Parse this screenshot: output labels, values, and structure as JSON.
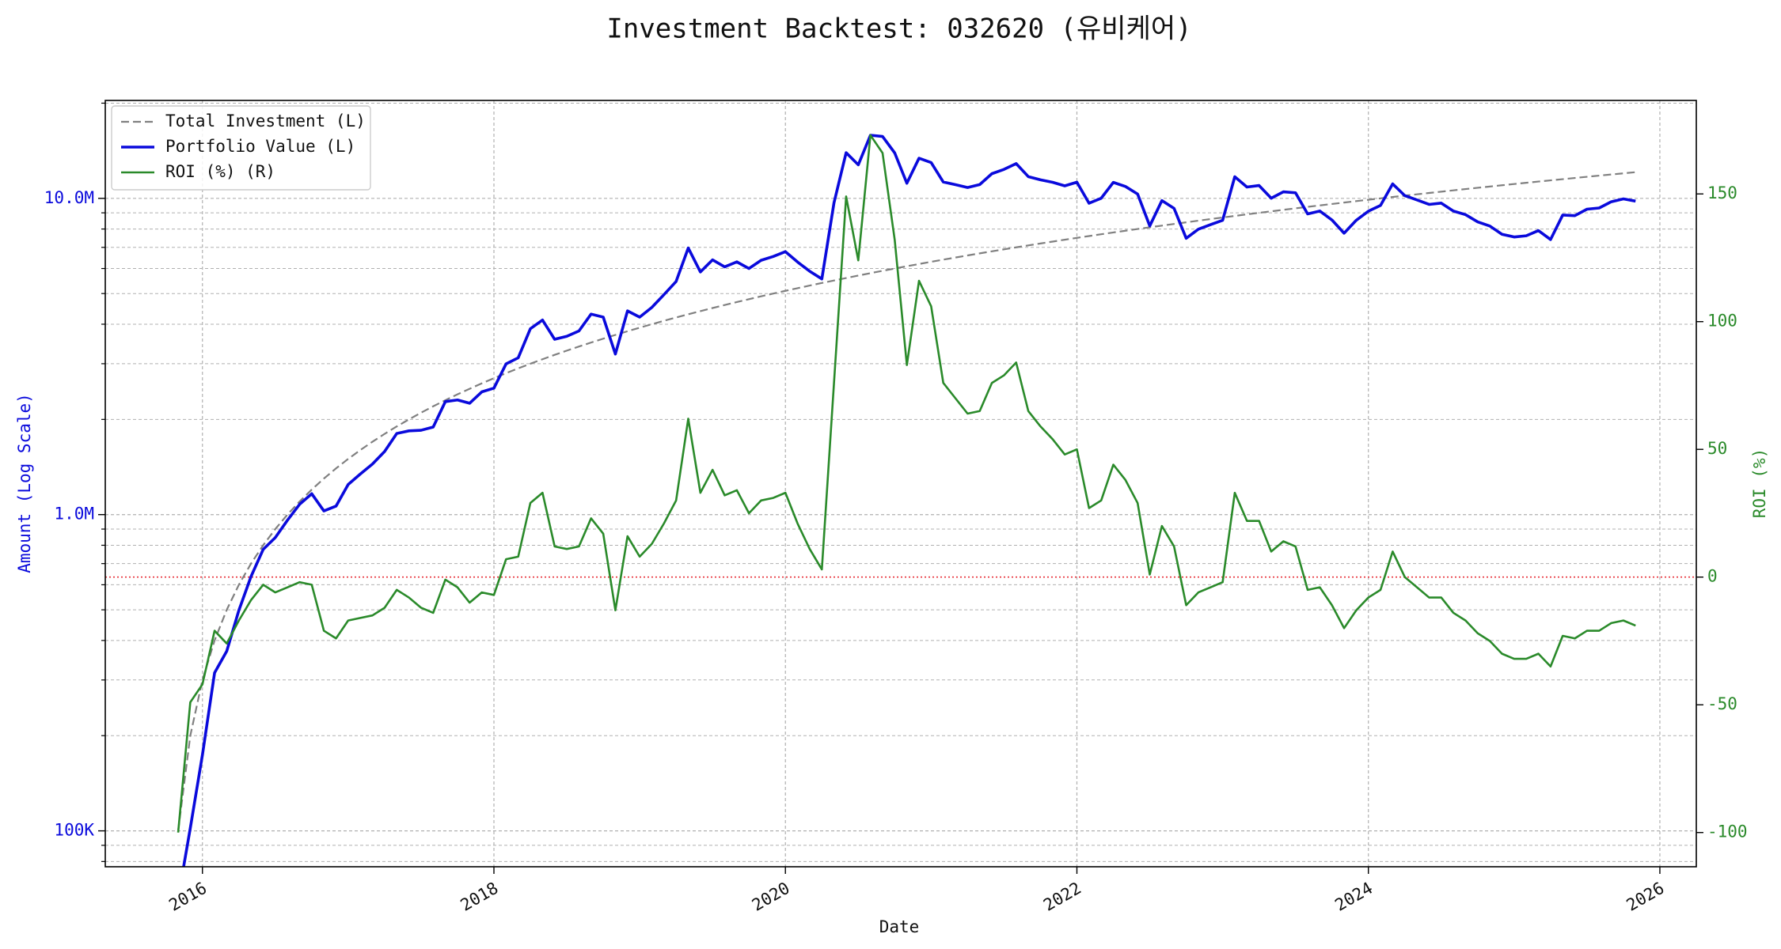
{
  "chart_data": {
    "type": "line",
    "title": "Investment Backtest: 032620 (유비케어)",
    "xlabel": "Date",
    "ylabel": "Amount (Log Scale)",
    "y2label": "ROI (%)",
    "ylog": true,
    "grid": true,
    "legend": "upper left",
    "xlim": [
      "2015-05",
      "2026-04"
    ],
    "xticks": [
      "2016",
      "2018",
      "2020",
      "2022",
      "2024",
      "2026"
    ],
    "ylim": [
      77000,
      20400000
    ],
    "yticks": [
      {
        "value": 100000,
        "label": "100K"
      },
      {
        "value": 1000000,
        "label": "1.0M"
      },
      {
        "value": 10000000,
        "label": "10.0M"
      }
    ],
    "yminorticks": [
      80000,
      90000,
      200000,
      300000,
      400000,
      500000,
      600000,
      700000,
      800000,
      900000,
      2000000,
      3000000,
      4000000,
      5000000,
      6000000,
      7000000,
      8000000,
      9000000,
      20000000
    ],
    "y2lim": [
      -113.4,
      186.6
    ],
    "y2ticks": [
      -100,
      -50,
      0,
      50,
      100,
      150
    ],
    "hlines": [
      {
        "value": 0,
        "axis": "y2",
        "color": "#e8313a"
      }
    ],
    "x": [
      "2015-11",
      "2015-12",
      "2016-01",
      "2016-02",
      "2016-03",
      "2016-04",
      "2016-05",
      "2016-06",
      "2016-07",
      "2016-08",
      "2016-09",
      "2016-10",
      "2016-11",
      "2016-12",
      "2017-01",
      "2017-02",
      "2017-03",
      "2017-04",
      "2017-05",
      "2017-06",
      "2017-07",
      "2017-08",
      "2017-09",
      "2017-10",
      "2017-11",
      "2017-12",
      "2018-01",
      "2018-02",
      "2018-03",
      "2018-04",
      "2018-05",
      "2018-06",
      "2018-07",
      "2018-08",
      "2018-09",
      "2018-10",
      "2018-11",
      "2018-12",
      "2019-01",
      "2019-02",
      "2019-03",
      "2019-04",
      "2019-05",
      "2019-06",
      "2019-07",
      "2019-08",
      "2019-09",
      "2019-10",
      "2019-11",
      "2019-12",
      "2020-01",
      "2020-02",
      "2020-03",
      "2020-04",
      "2020-05",
      "2020-06",
      "2020-07",
      "2020-08",
      "2020-09",
      "2020-10",
      "2020-11",
      "2020-12",
      "2021-01",
      "2021-02",
      "2021-03",
      "2021-04",
      "2021-05",
      "2021-06",
      "2021-07",
      "2021-08",
      "2021-09",
      "2021-10",
      "2021-11",
      "2021-12",
      "2022-01",
      "2022-02",
      "2022-03",
      "2022-04",
      "2022-05",
      "2022-06",
      "2022-07",
      "2022-08",
      "2022-09",
      "2022-10",
      "2022-11",
      "2022-12",
      "2023-01",
      "2023-02",
      "2023-03",
      "2023-04",
      "2023-05",
      "2023-06",
      "2023-07",
      "2023-08",
      "2023-09",
      "2023-10",
      "2023-11",
      "2023-12",
      "2024-01",
      "2024-02",
      "2024-03",
      "2024-04",
      "2024-05",
      "2024-06",
      "2024-07",
      "2024-08",
      "2024-09",
      "2024-10",
      "2024-11",
      "2024-12",
      "2025-01",
      "2025-02",
      "2025-03",
      "2025-04",
      "2025-05",
      "2025-06",
      "2025-07",
      "2025-08",
      "2025-09",
      "2025-10",
      "2025-11"
    ],
    "series": [
      {
        "name": "Total Investment (L)",
        "color": "#808080",
        "linestyle": "dashed",
        "width": 2.2,
        "values": [
          100000,
          200000,
          300000,
          400000,
          500000,
          600000,
          700000,
          800000,
          900000,
          1000000,
          1100000,
          1200000,
          1300000,
          1400000,
          1500000,
          1600000,
          1700000,
          1800000,
          1900000,
          2000000,
          2100000,
          2200000,
          2300000,
          2400000,
          2500000,
          2600000,
          2700000,
          2800000,
          2900000,
          3000000,
          3100000,
          3200000,
          3300000,
          3400000,
          3500000,
          3600000,
          3700000,
          3800000,
          3900000,
          4000000,
          4100000,
          4200000,
          4300000,
          4400000,
          4500000,
          4600000,
          4700000,
          4800000,
          4900000,
          5000000,
          5100000,
          5200000,
          5300000,
          5400000,
          5500000,
          5600000,
          5700000,
          5800000,
          5900000,
          6000000,
          6100000,
          6200000,
          6300000,
          6400000,
          6500000,
          6600000,
          6700000,
          6800000,
          6900000,
          7000000,
          7100000,
          7200000,
          7300000,
          7400000,
          7500000,
          7600000,
          7700000,
          7800000,
          7900000,
          8000000,
          8100000,
          8200000,
          8300000,
          8400000,
          8500000,
          8600000,
          8700000,
          8800000,
          8900000,
          9000000,
          9100000,
          9200000,
          9300000,
          9400000,
          9500000,
          9600000,
          9700000,
          9800000,
          9900000,
          10000000,
          10100000,
          10200000,
          10300000,
          10400000,
          10500000,
          10600000,
          10700000,
          10800000,
          10900000,
          11000000,
          11100000,
          11200000,
          11300000,
          11400000,
          11500000,
          11600000,
          11700000,
          11800000,
          11900000,
          12000000,
          12100000
        ]
      },
      {
        "name": "Portfolio Value (L)",
        "color": "#0a0adc",
        "linestyle": "solid",
        "width": 3.6,
        "values": [
          0,
          102000,
          174000,
          316000,
          370000,
          498000,
          637000,
          776000,
          846000,
          960000,
          1078000,
          1164000,
          1027000,
          1064000,
          1245000,
          1344000,
          1445000,
          1584000,
          1805000,
          1840000,
          1848000,
          1892000,
          2277000,
          2304000,
          2250000,
          2444000,
          2511000,
          2996000,
          3132000,
          3870000,
          4123000,
          3584000,
          3663000,
          3808000,
          4305000,
          4212000,
          3219000,
          4408000,
          4212000,
          4520000,
          4961000,
          5460000,
          6966000,
          5852000,
          6390000,
          6072000,
          6298000,
          6000000,
          6370000,
          6550000,
          6783000,
          6292000,
          5883000,
          5562000,
          9680000,
          13944000,
          12768000,
          15834000,
          15694000,
          13920000,
          11163000,
          13392000,
          12978000,
          11264000,
          11050000,
          10824000,
          11055000,
          11968000,
          12351000,
          12880000,
          11715000,
          11448000,
          11242000,
          10952000,
          11250000,
          9652000,
          10010000,
          11232000,
          10902000,
          10320000,
          8181000,
          9840000,
          9296000,
          7476000,
          7990000,
          8256000,
          8526000,
          11704000,
          10858000,
          10980000,
          10010000,
          10488000,
          10416000,
          8930000,
          9120000,
          8544000,
          7760000,
          8526000,
          9108000,
          9500000,
          11110000,
          10200000,
          9888000,
          9568000,
          9660000,
          9116000,
          8881000,
          8424000,
          8175000,
          7700000,
          7548000,
          7616000,
          7910000,
          7410000,
          8855000,
          8816000,
          9243000,
          9322000,
          9758000,
          9960000,
          9801000
        ]
      },
      {
        "name": "ROI (%) (R)",
        "color": "#2a8a2a",
        "linestyle": "solid",
        "width": 2.6,
        "axis": "y2",
        "values": [
          -100,
          -49,
          -42,
          -21,
          -26,
          -17,
          -9,
          -3,
          -6,
          -4,
          -2,
          -3,
          -21,
          -24,
          -17,
          -16,
          -15,
          -12,
          -5,
          -8,
          -12,
          -14,
          -1,
          -4,
          -10,
          -6,
          -7,
          7,
          8,
          29,
          33,
          12,
          11,
          12,
          23,
          17,
          -13,
          16,
          8,
          13,
          21,
          30,
          62,
          33,
          42,
          32,
          34,
          25,
          30,
          31,
          33,
          21,
          11,
          3,
          76,
          149,
          124,
          173,
          166,
          132,
          83,
          116,
          106,
          76,
          70,
          64,
          65,
          76,
          79,
          84,
          65,
          59,
          54,
          48,
          50,
          27,
          30,
          44,
          38,
          29,
          1,
          20,
          12,
          -11,
          -6,
          -4,
          -2,
          33,
          22,
          22,
          10,
          14,
          12,
          -5,
          -4,
          -11,
          -20,
          -13,
          -8,
          -5,
          10,
          0,
          -4,
          -8,
          -8,
          -14,
          -17,
          -22,
          -25,
          -30,
          -32,
          -32,
          -30,
          -35,
          -23,
          -24,
          -21,
          -21,
          -18,
          -17,
          -19
        ]
      }
    ]
  }
}
